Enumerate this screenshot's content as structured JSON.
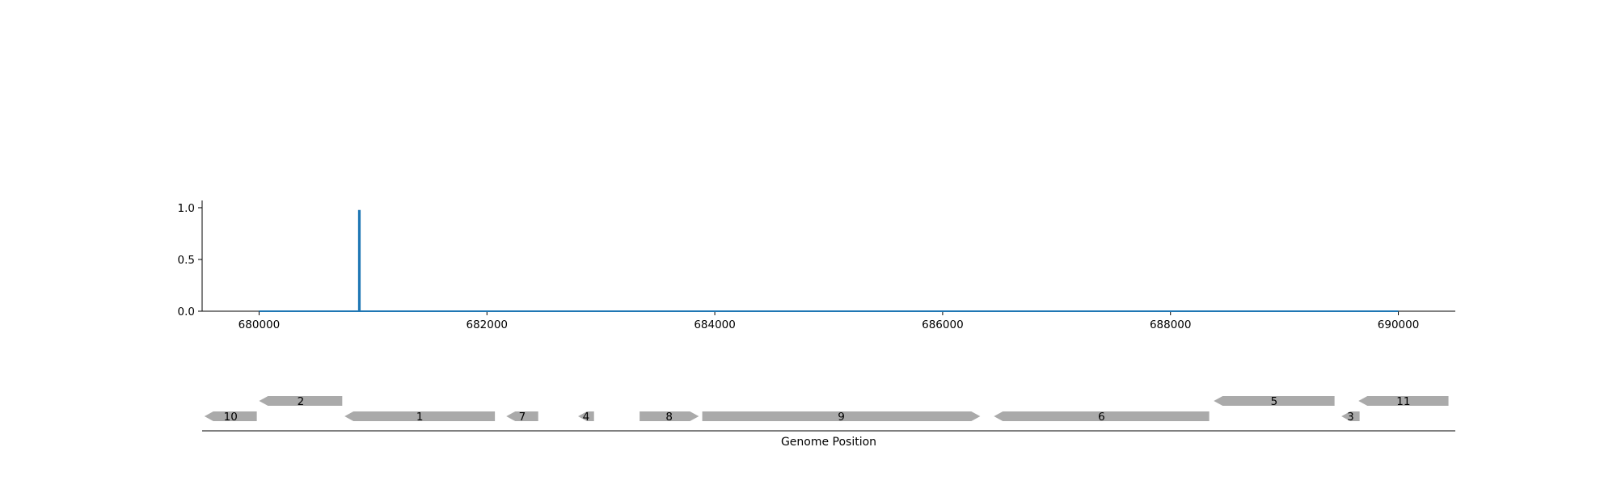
{
  "chart_data": [
    {
      "type": "line",
      "x_start": 680000,
      "x_end": 690000,
      "xlim": [
        679500,
        690500
      ],
      "ylim": [
        0,
        1.07
      ],
      "spike": {
        "x": 680880,
        "y": 0.97
      },
      "baseline": 0,
      "color": "#1f77b4",
      "x_ticks": [
        680000,
        682000,
        684000,
        686000,
        688000,
        690000
      ],
      "y_ticks": [
        {
          "value": 0.0,
          "label": "0.0"
        },
        {
          "value": 0.5,
          "label": "0.5"
        },
        {
          "value": 1.0,
          "label": "1.0"
        }
      ],
      "grid": false,
      "legend": "none"
    },
    {
      "type": "gene-track",
      "xlabel": "Genome Position",
      "xlim": [
        679500,
        690500
      ],
      "gene_color": "#aaaaaa",
      "genes": [
        {
          "label": "10",
          "start": 679520,
          "end": 679980,
          "strand": "-",
          "row": 0
        },
        {
          "label": "2",
          "start": 680000,
          "end": 680730,
          "strand": "-",
          "row": 1
        },
        {
          "label": "1",
          "start": 680750,
          "end": 682070,
          "strand": "-",
          "row": 0
        },
        {
          "label": "7",
          "start": 682170,
          "end": 682450,
          "strand": "-",
          "row": 0
        },
        {
          "label": "4",
          "start": 682800,
          "end": 682940,
          "strand": "-",
          "row": 0
        },
        {
          "label": "8",
          "start": 683340,
          "end": 683860,
          "strand": "+",
          "row": 0
        },
        {
          "label": "9",
          "start": 683890,
          "end": 686330,
          "strand": "+",
          "row": 0
        },
        {
          "label": "6",
          "start": 686450,
          "end": 688340,
          "strand": "-",
          "row": 0
        },
        {
          "label": "5",
          "start": 688380,
          "end": 689440,
          "strand": "-",
          "row": 1
        },
        {
          "label": "3",
          "start": 689500,
          "end": 689660,
          "strand": "-",
          "row": 0
        },
        {
          "label": "11",
          "start": 689650,
          "end": 690440,
          "strand": "-",
          "row": 1
        }
      ]
    }
  ]
}
